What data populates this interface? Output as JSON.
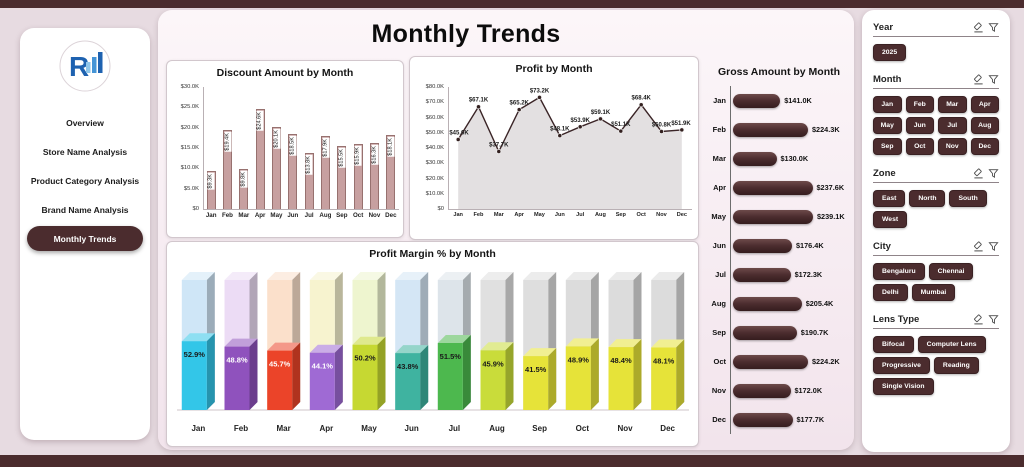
{
  "header": {
    "title": "Monthly Trends"
  },
  "sidebar": {
    "logo_letter": "R",
    "items": [
      {
        "label": "Overview",
        "active": false
      },
      {
        "label": "Store Name Analysis",
        "active": false
      },
      {
        "label": "Product Category Analysis",
        "active": false
      },
      {
        "label": "Brand Name Analysis",
        "active": false
      },
      {
        "label": "Monthly Trends",
        "active": true
      }
    ]
  },
  "chart_data": [
    {
      "id": "discount",
      "type": "bar",
      "title": "Discount Amount by Month",
      "categories": [
        "Jan",
        "Feb",
        "Mar",
        "Apr",
        "May",
        "Jun",
        "Jul",
        "Aug",
        "Sep",
        "Oct",
        "Nov",
        "Dec"
      ],
      "values": [
        9.3,
        19.4,
        9.8,
        24.6,
        20.1,
        18.5,
        13.8,
        17.9,
        15.5,
        15.9,
        16.3,
        18.1
      ],
      "labels": [
        "$9.3K",
        "$19.4K",
        "$9.8K",
        "$24.6K",
        "$20.1K",
        "$18.5K",
        "$13.8K",
        "$17.9K",
        "$15.5K",
        "$15.9K",
        "$16.3K",
        "$18.1K"
      ],
      "ylim": [
        0,
        30
      ],
      "yticks": [
        0,
        5,
        10,
        15,
        20,
        25,
        30
      ],
      "ytick_labels": [
        "$0",
        "$5.0K",
        "$10.0K",
        "$15.0K",
        "$20.0K",
        "$25.0K",
        "$30.0K"
      ],
      "bar_color": "#c7a0a0"
    },
    {
      "id": "profit",
      "type": "line",
      "title": "Profit by Month",
      "categories": [
        "Jan",
        "Feb",
        "Mar",
        "Apr",
        "May",
        "Jun",
        "Jul",
        "Aug",
        "Sep",
        "Oct",
        "Nov",
        "Dec"
      ],
      "values": [
        45.6,
        67.1,
        37.7,
        65.2,
        73.2,
        48.1,
        53.9,
        59.1,
        51.1,
        68.4,
        50.8,
        51.9
      ],
      "labels": [
        "$45.6K",
        "$67.1K",
        "$37.7K",
        "$65.2K",
        "$73.2K",
        "$48.1K",
        "$53.9K",
        "$59.1K",
        "$51.1K",
        "$68.4K",
        "$50.8K",
        "$51.9K"
      ],
      "ylim": [
        0,
        80
      ],
      "yticks": [
        0,
        10,
        20,
        30,
        40,
        50,
        60,
        70,
        80
      ],
      "ytick_labels": [
        "$0",
        "$10.0K",
        "$20.0K",
        "$30.0K",
        "$40.0K",
        "$50.0K",
        "$60.0K",
        "$70.0K",
        "$80.0K"
      ],
      "line_color": "#3a2426"
    },
    {
      "id": "profit-margin",
      "type": "bar",
      "title": "Profit Margin % by Month",
      "categories": [
        "Jan",
        "Feb",
        "Mar",
        "Apr",
        "May",
        "Jun",
        "Jul",
        "Aug",
        "Sep",
        "Oct",
        "Nov",
        "Dec"
      ],
      "values": [
        52.9,
        48.8,
        45.7,
        44.1,
        50.2,
        43.8,
        51.5,
        45.9,
        41.5,
        48.9,
        48.4,
        48.1
      ],
      "labels": [
        "52.9%",
        "48.8%",
        "45.7%",
        "44.1%",
        "50.2%",
        "43.8%",
        "51.5%",
        "45.9%",
        "41.5%",
        "48.9%",
        "48.4%",
        "48.1%"
      ],
      "ylim": [
        0,
        100
      ],
      "bar_colors": [
        "#33c6e8",
        "#8f52bd",
        "#eb4429",
        "#9f6ad4",
        "#c6d832",
        "#3fb3a0",
        "#4db84e",
        "#c9dc3a",
        "#e6e339",
        "#e6e339",
        "#e6e339",
        "#e6e339"
      ],
      "back_colors": [
        "#cfe6f7",
        "#ecdcf5",
        "#fbe0cb",
        "#f7f3cf",
        "#eef5cf",
        "#d4e6f5",
        "#dde4ea",
        "#e0e0e0",
        "#dedede",
        "#dcdcdc",
        "#dcdcdc",
        "#dcdcdc"
      ],
      "label_colors": [
        "#1a1a1a",
        "#ffffff",
        "#ffffff",
        "#ffffff",
        "#1a1a1a",
        "#1a1a1a",
        "#1a1a1a",
        "#1a1a1a",
        "#1a1a1a",
        "#1a1a1a",
        "#1a1a1a",
        "#1a1a1a"
      ]
    },
    {
      "id": "gross",
      "type": "bar-horizontal",
      "title": "Gross Amount by Month",
      "categories": [
        "Jan",
        "Feb",
        "Mar",
        "Apr",
        "May",
        "Jun",
        "Jul",
        "Aug",
        "Sep",
        "Oct",
        "Nov",
        "Dec"
      ],
      "values": [
        141.0,
        224.3,
        130.0,
        237.6,
        239.1,
        176.4,
        172.3,
        205.4,
        190.7,
        224.2,
        172.0,
        177.7
      ],
      "labels": [
        "$141.0K",
        "$224.3K",
        "$130.0K",
        "$237.6K",
        "$239.1K",
        "$176.4K",
        "$172.3K",
        "$205.4K",
        "$190.7K",
        "$224.2K",
        "$172.0K",
        "$177.7K"
      ],
      "bar_color": "#4b2c2e"
    }
  ],
  "slicers": [
    {
      "title": "Year",
      "options": [
        "2025"
      ],
      "cols": 0
    },
    {
      "title": "Month",
      "options": [
        "Jan",
        "Feb",
        "Mar",
        "Apr",
        "May",
        "Jun",
        "Jul",
        "Aug",
        "Sep",
        "Oct",
        "Nov",
        "Dec"
      ],
      "cols": 4
    },
    {
      "title": "Zone",
      "options": [
        "East",
        "North",
        "South",
        "West"
      ],
      "cols": 0
    },
    {
      "title": "City",
      "options": [
        "Bengaluru",
        "Chennai",
        "Delhi",
        "Mumbai"
      ],
      "cols": 0
    },
    {
      "title": "Lens Type",
      "options": [
        "Bifocal",
        "Computer Lens",
        "Progressive",
        "Reading",
        "Single Vision"
      ],
      "cols": 0
    }
  ],
  "colors": {
    "accent_dark": "#4b2c2e",
    "page_background": "#e7dbe1",
    "discount_bar": "#c7a0a0"
  }
}
